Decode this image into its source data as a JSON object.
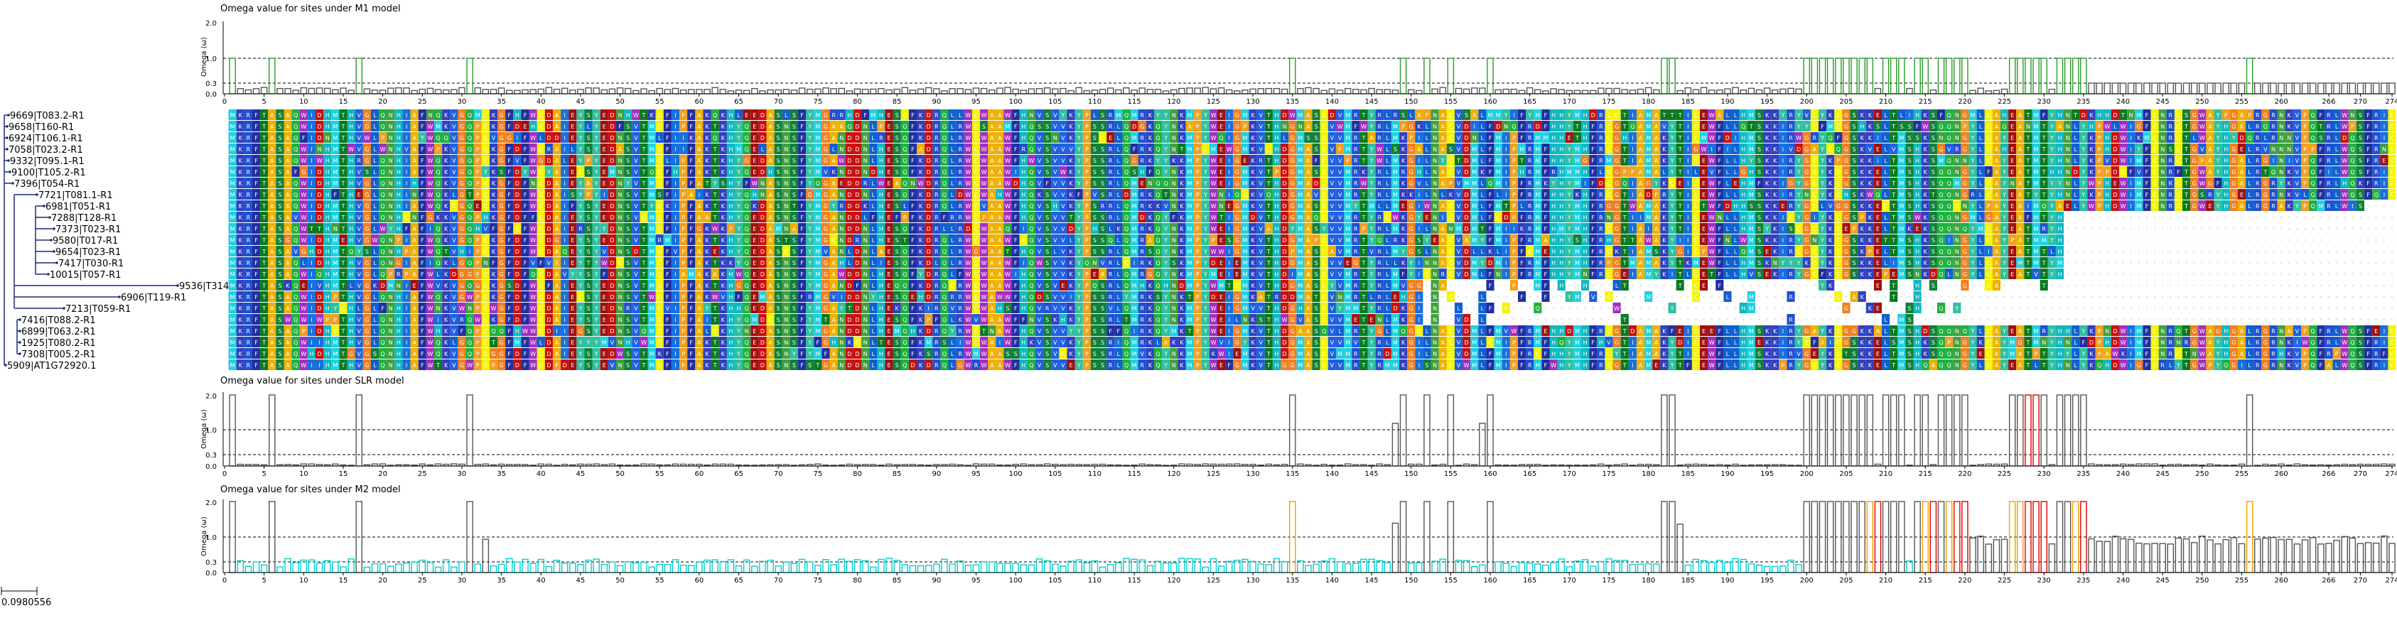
{
  "panels": {
    "m1_title": "Omega value for sites under M1 model",
    "slr_title": "Omega value for sites under SLR model",
    "m2_title": "Omega value for sites under M2 model",
    "y_axis_label": "Omega (ω)",
    "y_ticks": [
      "2.0",
      "1.0",
      "0.3",
      "0.0"
    ]
  },
  "x_axis": {
    "max_site": 274,
    "ticks": [
      0,
      5,
      10,
      15,
      20,
      25,
      30,
      35,
      40,
      45,
      50,
      55,
      60,
      65,
      70,
      75,
      80,
      85,
      90,
      95,
      100,
      105,
      110,
      115,
      120,
      125,
      130,
      135,
      140,
      145,
      150,
      155,
      160,
      165,
      170,
      175,
      180,
      185,
      190,
      195,
      200,
      205,
      210,
      215,
      220,
      225,
      230,
      235,
      240,
      245,
      250,
      255,
      260,
      266,
      270,
      274
    ]
  },
  "tree": {
    "scale_label": "0.0980556",
    "taxa": [
      "9669|T083.2-R1",
      "9658|T160-R1",
      "6924|T106.1-R1",
      "7058|T023.2-R1",
      "9332|T095.1-R1",
      "9100|T105.2-R1",
      "7396|T054-R1",
      "7721|T081.1-R1",
      "6981|T051-R1",
      "7288|T128-R1",
      "7373|T023-R1",
      "9580|T017-R1",
      "9654|T023-R1",
      "7417|T030-R1",
      "10015|T057-R1",
      "9536|T314-R1",
      "6906|T119-R1",
      "7213|T059-R1",
      "7416|T088.2-R1",
      "6899|T063.2-R1",
      "1925|T080.2-R1",
      "7308|T005.2-R1",
      "5909|AT1G72920.1"
    ],
    "x_end": [
      12,
      10,
      10,
      10,
      12,
      14,
      18,
      52,
      62,
      70,
      76,
      72,
      76,
      80,
      68,
      250,
      168,
      90,
      28,
      28,
      28,
      28,
      8
    ]
  },
  "alignment": {
    "conserved_prefix": "MKRFTAS",
    "row_lengths": [
      274,
      274,
      274,
      274,
      274,
      274,
      274,
      274,
      270,
      232,
      232,
      232,
      232,
      232,
      232,
      232,
      214,
      220,
      214,
      274,
      274,
      274,
      274
    ],
    "gap_rows": [
      15,
      16,
      17,
      18
    ],
    "palette": {
      "A": "#f0b000",
      "R": "#2050d0",
      "N": "#40a040",
      "D": "#c81010",
      "C": "#f4f400",
      "Q": "#20b040",
      "E": "#a01010",
      "G": "#f08020",
      "H": "#10b8c0",
      "I": "#1870e0",
      "L": "#1060d0",
      "K": "#3040c0",
      "M": "#20d0e0",
      "F": "#2030a0",
      "P": "#f0a020",
      "S": "#10803a",
      "T": "#0a7a20",
      "W": "#a030c0",
      "Y": "#30c0a0",
      "V": "#2060e0"
    }
  },
  "omega": {
    "color_normal": "#555555",
    "color_low": "#00d0d0",
    "color_pos_95": "#f0a000",
    "color_pos_99": "#e00000",
    "color_m1": "#2a9a2a",
    "full_sites": [
      1,
      6,
      17,
      31,
      135,
      149,
      152,
      155,
      160,
      182,
      183,
      200,
      201,
      202,
      203,
      204,
      205,
      206,
      207,
      208,
      210,
      211,
      212,
      214,
      215,
      217,
      218,
      219,
      220,
      226,
      227,
      228,
      229,
      230,
      232,
      233,
      234,
      235,
      256
    ],
    "m1_tail_start": 232,
    "m1_tail_value": 0.3,
    "m2_positive_95": [
      135,
      208,
      215,
      218,
      226,
      227,
      234,
      256
    ],
    "m2_positive_99": [
      209,
      216,
      219,
      220,
      228,
      229,
      230,
      235
    ],
    "slr_positive": [
      228,
      229
    ],
    "slr_mid_sites": [
      148,
      159
    ],
    "m2_mid_sites": [
      33,
      148,
      155,
      184
    ],
    "m2_tail_start": 221,
    "m2_tail_value": 0.8
  }
}
